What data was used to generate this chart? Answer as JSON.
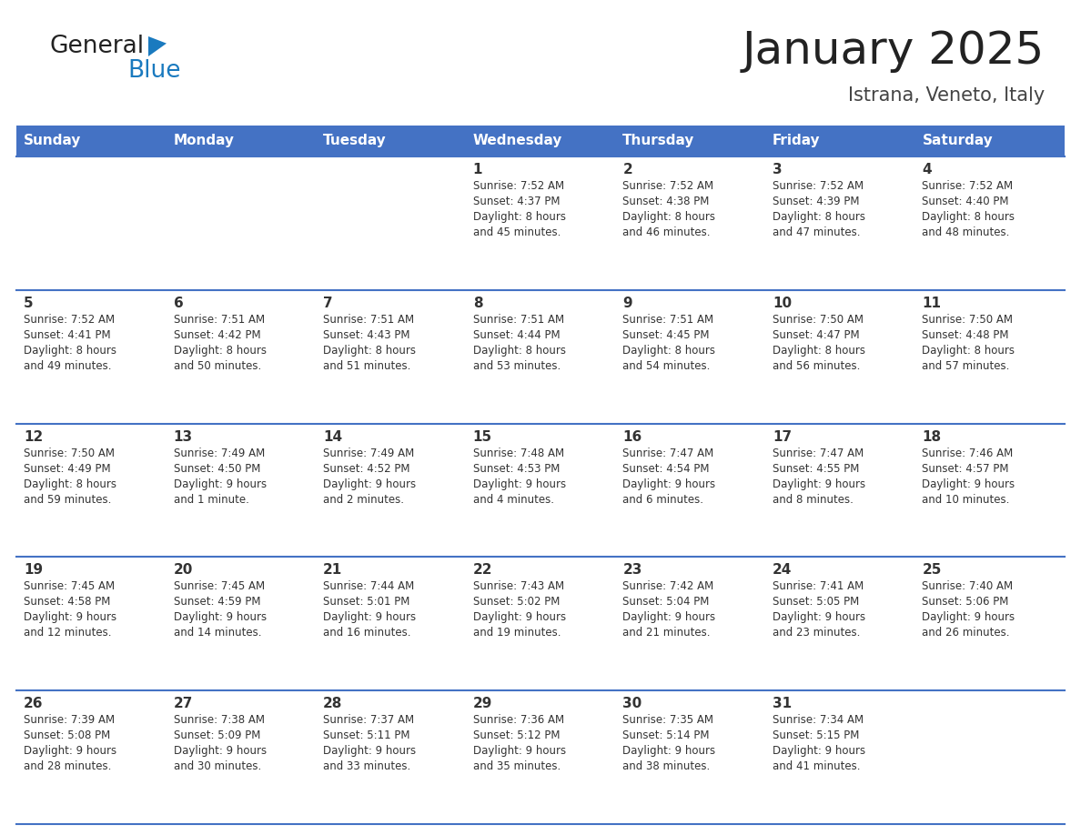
{
  "title": "January 2025",
  "subtitle": "Istrana, Veneto, Italy",
  "header_color": "#4472C4",
  "header_text_color": "#FFFFFF",
  "cell_border_color": "#4472C4",
  "day_names": [
    "Sunday",
    "Monday",
    "Tuesday",
    "Wednesday",
    "Thursday",
    "Friday",
    "Saturday"
  ],
  "weeks": [
    [
      {
        "day": "",
        "sunrise": "",
        "sunset": "",
        "daylight": ""
      },
      {
        "day": "",
        "sunrise": "",
        "sunset": "",
        "daylight": ""
      },
      {
        "day": "",
        "sunrise": "",
        "sunset": "",
        "daylight": ""
      },
      {
        "day": "1",
        "sunrise": "Sunrise: 7:52 AM",
        "sunset": "Sunset: 4:37 PM",
        "daylight": "Daylight: 8 hours\nand 45 minutes."
      },
      {
        "day": "2",
        "sunrise": "Sunrise: 7:52 AM",
        "sunset": "Sunset: 4:38 PM",
        "daylight": "Daylight: 8 hours\nand 46 minutes."
      },
      {
        "day": "3",
        "sunrise": "Sunrise: 7:52 AM",
        "sunset": "Sunset: 4:39 PM",
        "daylight": "Daylight: 8 hours\nand 47 minutes."
      },
      {
        "day": "4",
        "sunrise": "Sunrise: 7:52 AM",
        "sunset": "Sunset: 4:40 PM",
        "daylight": "Daylight: 8 hours\nand 48 minutes."
      }
    ],
    [
      {
        "day": "5",
        "sunrise": "Sunrise: 7:52 AM",
        "sunset": "Sunset: 4:41 PM",
        "daylight": "Daylight: 8 hours\nand 49 minutes."
      },
      {
        "day": "6",
        "sunrise": "Sunrise: 7:51 AM",
        "sunset": "Sunset: 4:42 PM",
        "daylight": "Daylight: 8 hours\nand 50 minutes."
      },
      {
        "day": "7",
        "sunrise": "Sunrise: 7:51 AM",
        "sunset": "Sunset: 4:43 PM",
        "daylight": "Daylight: 8 hours\nand 51 minutes."
      },
      {
        "day": "8",
        "sunrise": "Sunrise: 7:51 AM",
        "sunset": "Sunset: 4:44 PM",
        "daylight": "Daylight: 8 hours\nand 53 minutes."
      },
      {
        "day": "9",
        "sunrise": "Sunrise: 7:51 AM",
        "sunset": "Sunset: 4:45 PM",
        "daylight": "Daylight: 8 hours\nand 54 minutes."
      },
      {
        "day": "10",
        "sunrise": "Sunrise: 7:50 AM",
        "sunset": "Sunset: 4:47 PM",
        "daylight": "Daylight: 8 hours\nand 56 minutes."
      },
      {
        "day": "11",
        "sunrise": "Sunrise: 7:50 AM",
        "sunset": "Sunset: 4:48 PM",
        "daylight": "Daylight: 8 hours\nand 57 minutes."
      }
    ],
    [
      {
        "day": "12",
        "sunrise": "Sunrise: 7:50 AM",
        "sunset": "Sunset: 4:49 PM",
        "daylight": "Daylight: 8 hours\nand 59 minutes."
      },
      {
        "day": "13",
        "sunrise": "Sunrise: 7:49 AM",
        "sunset": "Sunset: 4:50 PM",
        "daylight": "Daylight: 9 hours\nand 1 minute."
      },
      {
        "day": "14",
        "sunrise": "Sunrise: 7:49 AM",
        "sunset": "Sunset: 4:52 PM",
        "daylight": "Daylight: 9 hours\nand 2 minutes."
      },
      {
        "day": "15",
        "sunrise": "Sunrise: 7:48 AM",
        "sunset": "Sunset: 4:53 PM",
        "daylight": "Daylight: 9 hours\nand 4 minutes."
      },
      {
        "day": "16",
        "sunrise": "Sunrise: 7:47 AM",
        "sunset": "Sunset: 4:54 PM",
        "daylight": "Daylight: 9 hours\nand 6 minutes."
      },
      {
        "day": "17",
        "sunrise": "Sunrise: 7:47 AM",
        "sunset": "Sunset: 4:55 PM",
        "daylight": "Daylight: 9 hours\nand 8 minutes."
      },
      {
        "day": "18",
        "sunrise": "Sunrise: 7:46 AM",
        "sunset": "Sunset: 4:57 PM",
        "daylight": "Daylight: 9 hours\nand 10 minutes."
      }
    ],
    [
      {
        "day": "19",
        "sunrise": "Sunrise: 7:45 AM",
        "sunset": "Sunset: 4:58 PM",
        "daylight": "Daylight: 9 hours\nand 12 minutes."
      },
      {
        "day": "20",
        "sunrise": "Sunrise: 7:45 AM",
        "sunset": "Sunset: 4:59 PM",
        "daylight": "Daylight: 9 hours\nand 14 minutes."
      },
      {
        "day": "21",
        "sunrise": "Sunrise: 7:44 AM",
        "sunset": "Sunset: 5:01 PM",
        "daylight": "Daylight: 9 hours\nand 16 minutes."
      },
      {
        "day": "22",
        "sunrise": "Sunrise: 7:43 AM",
        "sunset": "Sunset: 5:02 PM",
        "daylight": "Daylight: 9 hours\nand 19 minutes."
      },
      {
        "day": "23",
        "sunrise": "Sunrise: 7:42 AM",
        "sunset": "Sunset: 5:04 PM",
        "daylight": "Daylight: 9 hours\nand 21 minutes."
      },
      {
        "day": "24",
        "sunrise": "Sunrise: 7:41 AM",
        "sunset": "Sunset: 5:05 PM",
        "daylight": "Daylight: 9 hours\nand 23 minutes."
      },
      {
        "day": "25",
        "sunrise": "Sunrise: 7:40 AM",
        "sunset": "Sunset: 5:06 PM",
        "daylight": "Daylight: 9 hours\nand 26 minutes."
      }
    ],
    [
      {
        "day": "26",
        "sunrise": "Sunrise: 7:39 AM",
        "sunset": "Sunset: 5:08 PM",
        "daylight": "Daylight: 9 hours\nand 28 minutes."
      },
      {
        "day": "27",
        "sunrise": "Sunrise: 7:38 AM",
        "sunset": "Sunset: 5:09 PM",
        "daylight": "Daylight: 9 hours\nand 30 minutes."
      },
      {
        "day": "28",
        "sunrise": "Sunrise: 7:37 AM",
        "sunset": "Sunset: 5:11 PM",
        "daylight": "Daylight: 9 hours\nand 33 minutes."
      },
      {
        "day": "29",
        "sunrise": "Sunrise: 7:36 AM",
        "sunset": "Sunset: 5:12 PM",
        "daylight": "Daylight: 9 hours\nand 35 minutes."
      },
      {
        "day": "30",
        "sunrise": "Sunrise: 7:35 AM",
        "sunset": "Sunset: 5:14 PM",
        "daylight": "Daylight: 9 hours\nand 38 minutes."
      },
      {
        "day": "31",
        "sunrise": "Sunrise: 7:34 AM",
        "sunset": "Sunset: 5:15 PM",
        "daylight": "Daylight: 9 hours\nand 41 minutes."
      },
      {
        "day": "",
        "sunrise": "",
        "sunset": "",
        "daylight": ""
      }
    ]
  ],
  "logo_color_general": "#222222",
  "logo_color_blue": "#1a7abf",
  "logo_triangle_color": "#1a7abf",
  "background_color": "#FFFFFF",
  "cell_bg": "#FFFFFF",
  "text_color": "#333333",
  "title_color": "#222222",
  "subtitle_color": "#444444",
  "title_fontsize": 36,
  "subtitle_fontsize": 15,
  "day_name_fontsize": 11,
  "day_num_fontsize": 11,
  "cell_text_fontsize": 8.5
}
